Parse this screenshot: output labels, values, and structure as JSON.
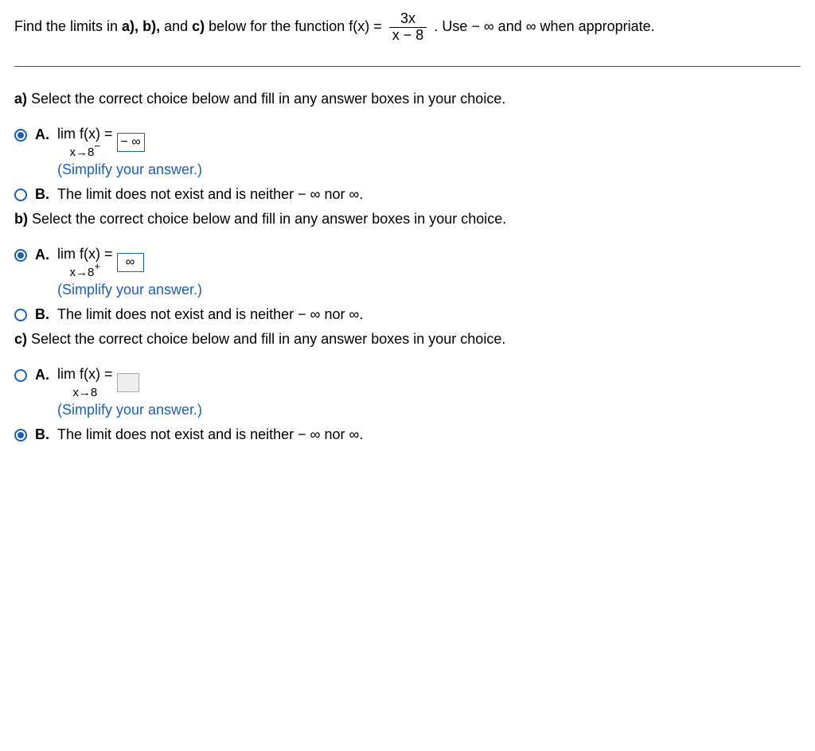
{
  "header": {
    "prefix": "Find the limits in ",
    "parts": [
      "a),",
      "b),",
      "c)"
    ],
    "joiner1": " ",
    "joiner2": " and ",
    "mid": " below for the function f(x) = ",
    "frac_num": "3x",
    "frac_den": "x − 8",
    "suffix": ". Use − ∞ and ∞ when appropriate."
  },
  "hint_text": "(Simplify your answer.)",
  "option_b_text": "The limit does not exist and is neither − ∞ nor ∞.",
  "parts_data": {
    "a": {
      "prompt_label": "a)",
      "prompt_text": " Select the correct choice below and fill in any answer boxes in your choice.",
      "selected": "A",
      "limit_sub": "x→8",
      "limit_sup": "−",
      "answer_value": "− ∞",
      "answer_filled": true
    },
    "b": {
      "prompt_label": "b)",
      "prompt_text": " Select the correct choice below and fill in any answer boxes in your choice.",
      "selected": "A",
      "limit_sub": "x→8",
      "limit_sup": "+",
      "answer_value": "∞",
      "answer_filled": true
    },
    "c": {
      "prompt_label": "c)",
      "prompt_text": " Select the correct choice below and fill in any answer boxes in your choice.",
      "selected": "B",
      "limit_sub": "x→8",
      "limit_sup": "",
      "answer_value": "",
      "answer_filled": false
    }
  },
  "labels": {
    "A": "A.",
    "B": "B.",
    "lim": "lim",
    "fx_eq": "  f(x) = "
  },
  "colors": {
    "accent": "#1a5fb4",
    "text": "#000000",
    "box_empty_border": "#aaaaaa",
    "box_empty_bg": "#eeeeee"
  }
}
